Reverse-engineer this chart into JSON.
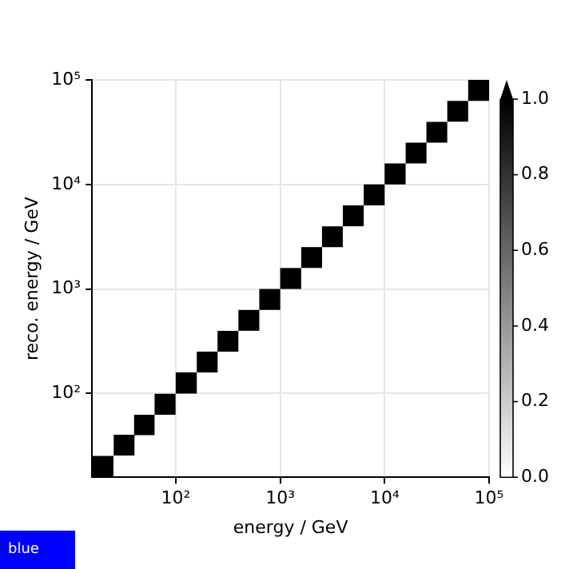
{
  "chart_data": {
    "type": "scatter",
    "xlabel": "energy / GeV",
    "ylabel": "reco. energy / GeV",
    "x": [
      20,
      32,
      50,
      79,
      126,
      200,
      316,
      501,
      794,
      1260,
      2000,
      3160,
      5010,
      7940,
      12600,
      20000,
      31600,
      50100,
      79400
    ],
    "values": [
      20,
      32,
      50,
      79,
      126,
      200,
      316,
      501,
      794,
      1260,
      2000,
      3160,
      5010,
      7940,
      12600,
      20000,
      31600,
      50100,
      79400
    ],
    "cvalues": [
      1,
      1,
      1,
      1,
      1,
      1,
      1,
      1,
      1,
      1,
      1,
      1,
      1,
      1,
      1,
      1,
      1,
      1,
      1
    ],
    "marker": "square",
    "log": "xy",
    "grid": true,
    "xlim": [
      15.8,
      100000
    ],
    "ylim": [
      15.8,
      100000
    ],
    "xticks": [
      {
        "value": 100,
        "label": "10²"
      },
      {
        "value": 1000,
        "label": "10³"
      },
      {
        "value": 10000,
        "label": "10⁴"
      },
      {
        "value": 100000,
        "label": "10⁵"
      }
    ],
    "yticks": [
      {
        "value": 100,
        "label": "10²"
      },
      {
        "value": 1000,
        "label": "10³"
      },
      {
        "value": 10000,
        "label": "10⁴"
      },
      {
        "value": 100000,
        "label": "10⁵"
      }
    ],
    "clim": [
      0,
      1
    ],
    "cticks": [
      {
        "value": 0,
        "label": "0.0"
      },
      {
        "value": 0.2,
        "label": "0.2"
      },
      {
        "value": 0.4,
        "label": "0.4"
      },
      {
        "value": 0.6,
        "label": "0.6"
      },
      {
        "value": 0.8,
        "label": "0.8"
      },
      {
        "value": 1,
        "label": "1.0"
      }
    ],
    "annotations": [
      "blue"
    ]
  }
}
